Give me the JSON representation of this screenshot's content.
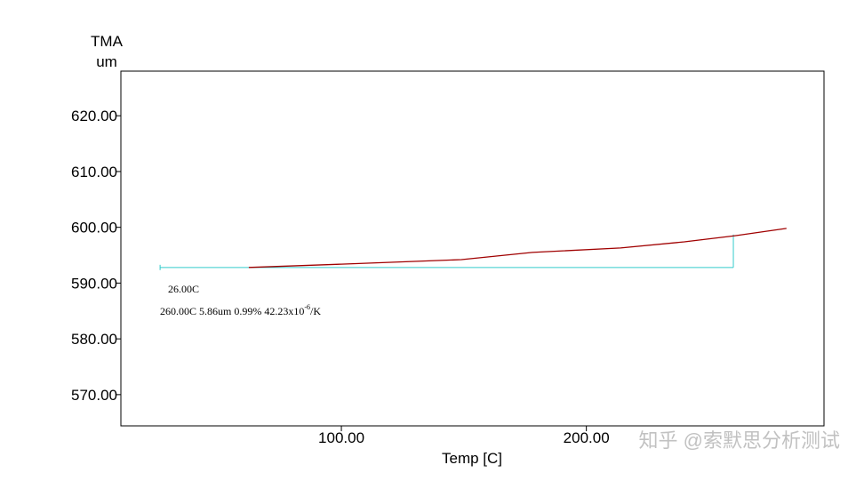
{
  "chart_data": {
    "type": "line",
    "y_label_top": "TMA",
    "y_label_unit": "um",
    "x_label": "Temp  [C]",
    "x": [
      62.2,
      100,
      149,
      178,
      214,
      240,
      260.7,
      281.7
    ],
    "series": [
      {
        "name": "TMA",
        "color": "#a00000",
        "values": [
          592.8,
          593.4,
          594.2,
          595.5,
          596.3,
          597.4,
          598.5,
          599.8
        ]
      }
    ],
    "xlim": [
      10,
      297
    ],
    "ylim": [
      564.4,
      628
    ],
    "xticks": [
      {
        "value": 100,
        "label": "100.00"
      },
      {
        "value": 200,
        "label": "200.00"
      }
    ],
    "yticks": [
      {
        "value": 570,
        "label": "570.00"
      },
      {
        "value": 580,
        "label": "580.00"
      },
      {
        "value": 590,
        "label": "590.00"
      },
      {
        "value": 600,
        "label": "600.00"
      },
      {
        "value": 610,
        "label": "610.00"
      },
      {
        "value": 620,
        "label": "620.00"
      }
    ],
    "annotation": {
      "color": "#33cccc",
      "x_start": 26,
      "x_end": 260,
      "y_start": 592.8,
      "y_end": 598.7,
      "start_label": "26.00C",
      "result_label": "260.00C 5.86um 0.99% 42.23x10",
      "result_exponent": "-6",
      "result_unit": "/K"
    },
    "watermark": "知乎 @索默思分析测试"
  }
}
